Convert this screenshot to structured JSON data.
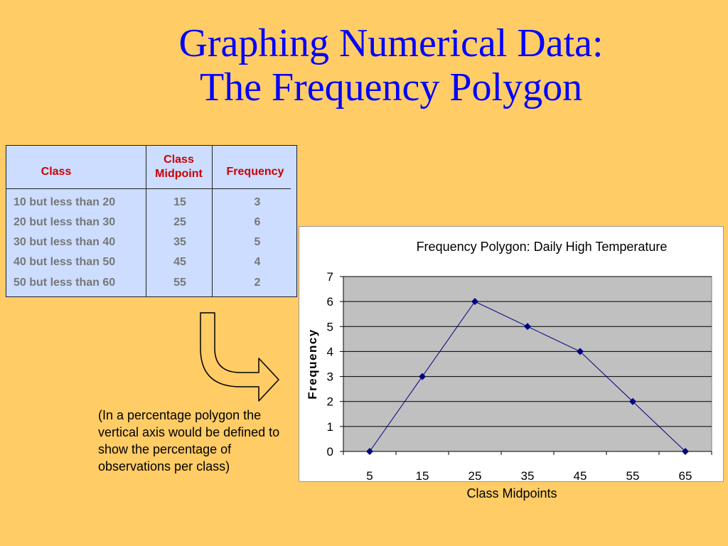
{
  "title": {
    "line1": "Graphing Numerical Data:",
    "line2": "The Frequency Polygon"
  },
  "table": {
    "headers": {
      "class": "Class",
      "midpoint_line1": "Class",
      "midpoint_line2": "Midpoint",
      "frequency": "Frequency"
    },
    "rows": [
      {
        "class": "10 but less than 20",
        "midpoint": "15",
        "frequency": "3"
      },
      {
        "class": "20 but less than 30",
        "midpoint": "25",
        "frequency": "6"
      },
      {
        "class": "30 but less than 40",
        "midpoint": "35",
        "frequency": "5"
      },
      {
        "class": "40 but less than 50",
        "midpoint": "45",
        "frequency": "4"
      },
      {
        "class": "50 but less than 60",
        "midpoint": "55",
        "frequency": "2"
      }
    ]
  },
  "note": {
    "text": "(In a percentage polygon the vertical axis would be defined to show the percentage of observations per class)"
  },
  "colors": {
    "background": "#FFCC66",
    "title": "#0000FF",
    "table_bg": "#CCDDFF",
    "header_text": "#CC0000",
    "plot_bg": "#C0C0C0",
    "series": "#000080"
  },
  "chart_data": {
    "type": "line",
    "title": "Frequency Polygon: Daily High Temperature",
    "xlabel": "Class Midpoints",
    "ylabel": "Frequency",
    "x": [
      5,
      15,
      25,
      35,
      45,
      55,
      65
    ],
    "categories": [
      "5",
      "15",
      "25",
      "35",
      "45",
      "55",
      "65"
    ],
    "series": [
      {
        "values": [
          0,
          3,
          6,
          5,
          4,
          2,
          0
        ]
      }
    ],
    "ylim": [
      0,
      7
    ],
    "yticks": [
      "0",
      "1",
      "2",
      "3",
      "4",
      "5",
      "6",
      "7"
    ],
    "grid": true,
    "marker": "diamond",
    "legend": "none"
  }
}
